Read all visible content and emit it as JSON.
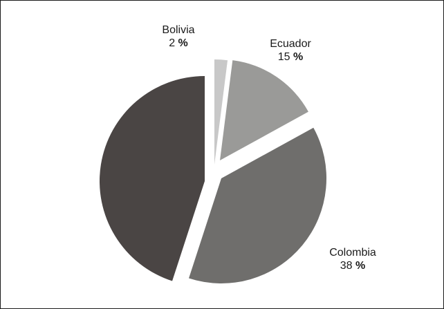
{
  "chart_data": {
    "type": "pie",
    "title": "",
    "slices": [
      {
        "label": "Bolivia",
        "value": 2,
        "value_text": "2",
        "unit": "%",
        "color": "#c8c8c8"
      },
      {
        "label": "Ecuador",
        "value": 15,
        "value_text": "15",
        "unit": "%",
        "color": "#9a9a98"
      },
      {
        "label": "Colombia",
        "value": 38,
        "value_text": "38",
        "unit": "%",
        "color": "#6f6e6c"
      },
      {
        "label": "",
        "value": 45,
        "value_text": "",
        "unit": "",
        "color": "#4a4544"
      }
    ],
    "legend": "none",
    "exploded": true
  }
}
